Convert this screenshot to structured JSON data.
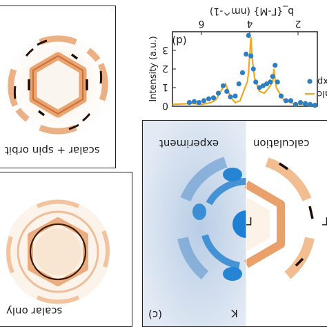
{
  "panel_a": {
    "caption": "scalar + spin orbit"
  },
  "panel_b": {
    "caption": "scalar only"
  },
  "panel_c": {
    "letter": "(c)",
    "left_label": "experiment",
    "right_label": "calculation",
    "gamma_label": "Γ",
    "k_label": "K"
  },
  "panel_d": {
    "letter": "(d)",
    "legend": [
      "calc",
      "exp"
    ]
  },
  "chart_data": {
    "type": "line",
    "xlabel": "b_{Γ-M} (nm^-1)",
    "ylabel": "Intensity (a.u.)",
    "xlim": [
      1.2,
      7.2
    ],
    "ylim": [
      0,
      4
    ],
    "x_ticks": [
      "2",
      "4",
      "6"
    ],
    "y_ticks": [
      "0",
      "1",
      "2",
      "3"
    ],
    "series": [
      {
        "name": "calc",
        "color": "#f0a81e",
        "x": [
          1.2,
          1.8,
          2.2,
          2.6,
          2.9,
          3.0,
          3.05,
          3.1,
          3.2,
          3.4,
          3.6,
          3.8,
          3.9,
          3.95,
          4.0,
          4.05,
          4.1,
          4.2,
          4.4,
          4.6,
          4.8,
          5.0,
          5.2,
          5.4,
          5.6,
          6.0,
          6.4,
          7.2
        ],
        "y": [
          0.05,
          0.1,
          0.15,
          0.35,
          1.0,
          2.0,
          1.3,
          1.2,
          1.0,
          0.7,
          0.8,
          1.5,
          2.6,
          3.7,
          2.8,
          1.8,
          1.3,
          1.0,
          0.3,
          0.2,
          0.5,
          1.2,
          0.8,
          0.35,
          0.2,
          0.1,
          0.15,
          0.1
        ]
      },
      {
        "name": "exp",
        "color": "#2e7fc2",
        "x": [
          1.3,
          1.5,
          1.7,
          1.9,
          2.1,
          2.3,
          2.5,
          2.7,
          2.85,
          2.95,
          3.05,
          3.15,
          3.3,
          3.45,
          3.6,
          3.75,
          3.85,
          3.95,
          4.05,
          4.15,
          4.3,
          4.45,
          4.6,
          4.8,
          4.95,
          5.1,
          5.3,
          5.5,
          5.7,
          5.9,
          6.1,
          6.3,
          6.5
        ],
        "y": [
          0.05,
          0.1,
          0.15,
          0.2,
          0.1,
          0.3,
          0.3,
          0.55,
          1.3,
          2.2,
          1.6,
          1.3,
          1.2,
          1.1,
          1.0,
          1.3,
          2.0,
          2.7,
          3.8,
          2.8,
          1.8,
          1.2,
          0.55,
          0.5,
          0.8,
          1.1,
          0.7,
          0.45,
          0.4,
          0.3,
          0.2,
          0.25,
          0.2
        ]
      }
    ]
  }
}
